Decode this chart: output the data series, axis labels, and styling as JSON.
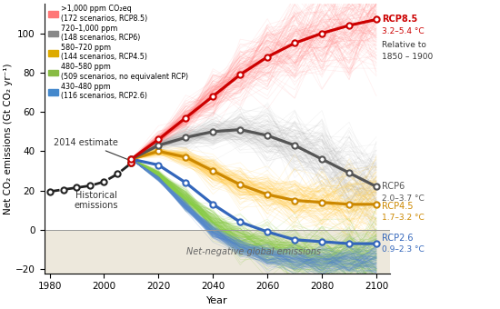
{
  "xlabel": "Year",
  "ylabel": "Net CO₂ emissions (Gt CO₂ yr⁻¹)",
  "xlim": [
    1978,
    2105
  ],
  "ylim": [
    -22,
    115
  ],
  "yticks": [
    -20,
    0,
    20,
    40,
    60,
    80,
    100
  ],
  "xticks": [
    1980,
    2000,
    2020,
    2040,
    2060,
    2080,
    2100
  ],
  "plot_bg": "#ffffff",
  "negative_zone_color": "#ede8dc",
  "rcp85_color": "#cc0000",
  "rcp6_color": "#555555",
  "rcp45_color": "#cc8800",
  "rcp26_color": "#3366bb",
  "historical_color": "#222222",
  "rcp85_years": [
    2010,
    2020,
    2030,
    2040,
    2050,
    2060,
    2070,
    2080,
    2090,
    2100
  ],
  "rcp85_values": [
    36,
    46,
    57,
    68,
    79,
    88,
    95,
    100,
    104,
    107
  ],
  "rcp6_years": [
    2010,
    2020,
    2030,
    2040,
    2050,
    2060,
    2070,
    2080,
    2090,
    2100
  ],
  "rcp6_values": [
    36,
    43,
    47,
    50,
    51,
    48,
    43,
    36,
    29,
    22
  ],
  "rcp45_years": [
    2010,
    2020,
    2030,
    2040,
    2050,
    2060,
    2070,
    2080,
    2090,
    2100
  ],
  "rcp45_values": [
    36,
    40,
    37,
    30,
    23,
    18,
    15,
    14,
    13,
    13
  ],
  "rcp26_years": [
    2010,
    2020,
    2030,
    2040,
    2050,
    2060,
    2070,
    2080,
    2090,
    2100
  ],
  "rcp26_values": [
    36,
    33,
    24,
    13,
    4,
    -1,
    -5,
    -6,
    -7,
    -7
  ],
  "hist_years": [
    1980,
    1985,
    1990,
    1995,
    2000,
    2005,
    2010
  ],
  "hist_values": [
    19.5,
    20.5,
    21.5,
    22.5,
    24.5,
    28.5,
    34.0
  ],
  "fan_rcp85_color": "#ff7777",
  "fan_rcp6_color": "#aaaaaa",
  "fan_rcp45_color": "#ffcc44",
  "fan_green_color": "#88cc44",
  "fan_blue_color": "#5588cc",
  "legend_colors": [
    "#ff7777",
    "#888888",
    "#ddaa00",
    "#88bb44",
    "#4488cc"
  ],
  "legend_labels": [
    ">1,000 ppm CO₂eq\n(172 scenarios, RCP8.5)",
    "720–1,000 ppm\n(148 scenarios, RCP6)",
    "580–720 ppm\n(144 scenarios, RCP4.5)",
    "480–580 ppm\n(509 scenarios, no equivalent RCP)",
    "430–480 ppm\n(116 scenarios, RCP2.6)"
  ],
  "annotation_nonneg": "Net-negative global emissions"
}
